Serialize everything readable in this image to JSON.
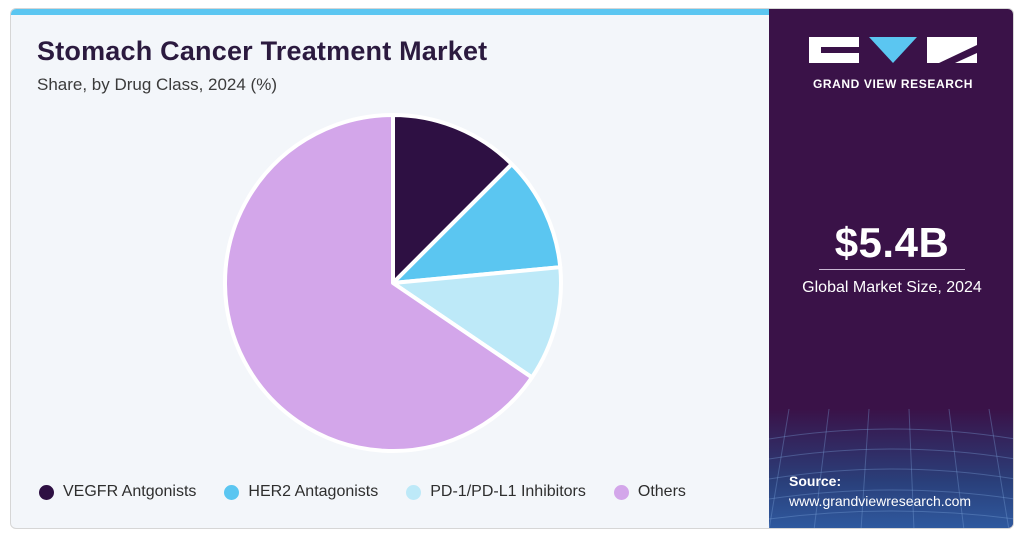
{
  "header": {
    "title": "Stomach Cancer Treatment Market",
    "subtitle": "Share, by Drug Class, 2024 (%)"
  },
  "chart_data": {
    "type": "pie",
    "categories": [
      "VEGFR Antgonists",
      "HER2 Antagonists",
      "PD-1/PD-L1 Inhibitors",
      "Others"
    ],
    "values": [
      12.5,
      11.0,
      11.0,
      65.5
    ],
    "colors": [
      "#2e1043",
      "#5bc6f1",
      "#bde9f8",
      "#d3a6ea"
    ],
    "title": "Stomach Cancer Treatment Market",
    "legend": "bottom"
  },
  "legend": {
    "items": [
      {
        "label": "VEGFR Antgonists",
        "color": "#2e1043"
      },
      {
        "label": "HER2 Antagonists",
        "color": "#5bc6f1"
      },
      {
        "label": "PD-1/PD-L1 Inhibitors",
        "color": "#bde9f8"
      },
      {
        "label": "Others",
        "color": "#d3a6ea"
      }
    ]
  },
  "sidebar": {
    "brand": "GRAND VIEW RESEARCH",
    "market_value": "$5.4B",
    "market_label": "Global Market Size, 2024",
    "source_label": "Source:",
    "source_url": "www.grandviewresearch.com"
  },
  "colors": {
    "sidebar_bg": "#3a1248",
    "accent": "#5bc6f1",
    "title_text": "#2b1a3f"
  }
}
